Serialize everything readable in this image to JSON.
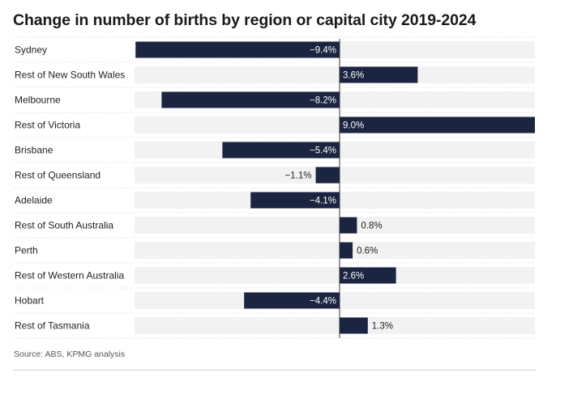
{
  "title": "Change in number of births by region or capital city 2019-2024",
  "source": "Source: ABS, KPMG analysis",
  "colors": {
    "bar": "#1b2440",
    "row_band": "#f2f2f2",
    "divider": "#dcdcdc",
    "zero_line": "#333333",
    "label_on_bar": "#ffffff",
    "label_outside": "#222222"
  },
  "chart_data": {
    "type": "bar",
    "orientation": "horizontal",
    "categories": [
      "Sydney",
      "Rest of New South Wales",
      "Melbourne",
      "Rest of Victoria",
      "Brisbane",
      "Rest of Queensland",
      "Adelaide",
      "Rest of South Australia",
      "Perth",
      "Rest of Western Australia",
      "Hobart",
      "Rest of Tasmania"
    ],
    "values": [
      -9.4,
      3.6,
      -8.2,
      9.0,
      -5.4,
      -1.1,
      -4.1,
      0.8,
      0.6,
      2.6,
      -4.4,
      1.3
    ],
    "value_labels": [
      "−9.4%",
      "3.6%",
      "−8.2%",
      "9.0%",
      "−5.4%",
      "−1.1%",
      "−4.1%",
      "0.8%",
      "0.6%",
      "2.6%",
      "−4.4%",
      "1.3%"
    ],
    "xlim": [
      -9.4,
      9.0
    ],
    "title": "Change in number of births by region or capital city 2019-2024",
    "xlabel": "",
    "ylabel": "",
    "grid": false,
    "legend": "none"
  }
}
